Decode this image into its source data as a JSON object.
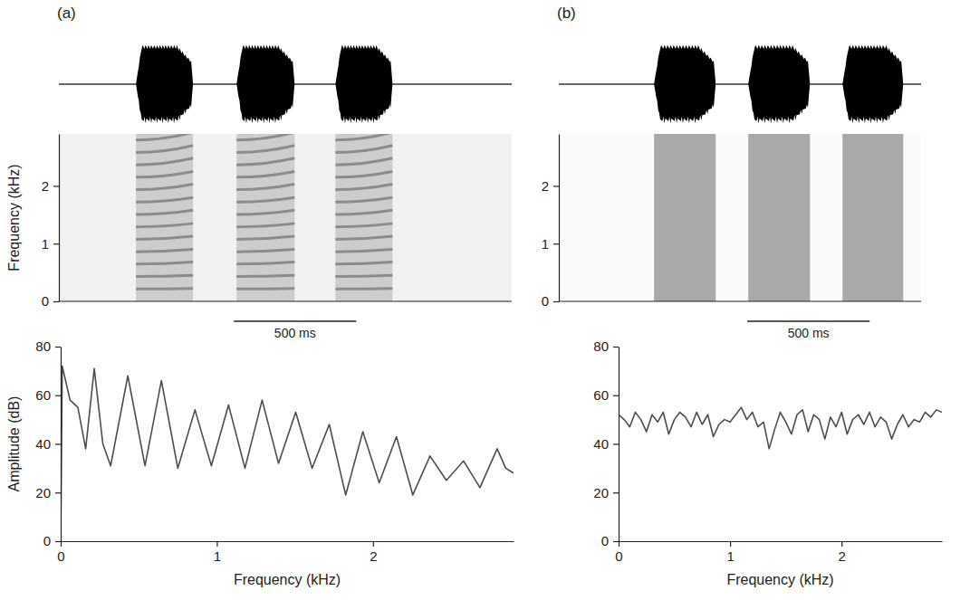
{
  "chart_data": [
    {
      "type": "waveform",
      "title": "(a)",
      "xlim": [
        0,
        1850
      ],
      "bursts": [
        [
          315,
          548
        ],
        [
          726,
          963
        ],
        [
          1130,
          1363
        ]
      ],
      "tick_labels": false
    },
    {
      "type": "spectrogram",
      "y_label": "Frequency (kHz)",
      "xlim": [
        0,
        1850
      ],
      "ylim": [
        0,
        2.9
      ],
      "yticks": [
        0,
        1,
        2
      ],
      "tick_labels": "y",
      "bursts": [
        [
          315,
          548
        ],
        [
          726,
          963
        ],
        [
          1130,
          1363
        ]
      ],
      "harmonics_start": [
        0.215,
        0.43,
        0.645,
        0.86,
        1.075,
        1.29,
        1.505,
        1.72,
        1.935,
        2.15,
        2.365,
        2.58,
        2.795
      ],
      "harmonics_end": [
        0.225,
        0.45,
        0.68,
        0.9,
        1.13,
        1.35,
        1.58,
        1.8,
        2.03,
        2.25,
        2.48,
        2.7,
        2.93
      ],
      "scale_bar": {
        "start": 715,
        "value": 500,
        "label": "500 ms"
      }
    },
    {
      "type": "line",
      "x_label": "Frequency (kHz)",
      "y_label": "Amplitude (dB)",
      "xlim": [
        0,
        2.9
      ],
      "xticks": [
        0,
        1,
        2
      ],
      "ylim": [
        0,
        80
      ],
      "yticks": [
        0,
        20,
        40,
        60,
        80
      ],
      "color": "#4d4d4d",
      "x": [
        0,
        0.01,
        0.06,
        0.11,
        0.16,
        0.215,
        0.27,
        0.32,
        0.43,
        0.54,
        0.645,
        0.75,
        0.86,
        0.965,
        1.075,
        1.18,
        1.29,
        1.395,
        1.505,
        1.61,
        1.72,
        1.825,
        1.935,
        2.04,
        2.15,
        2.255,
        2.365,
        2.47,
        2.58,
        2.685,
        2.795,
        2.85,
        2.9
      ],
      "values": [
        2,
        72,
        58,
        55,
        38,
        71,
        40,
        31,
        68,
        31,
        66,
        30,
        54,
        31,
        56,
        30,
        58,
        32,
        53,
        30,
        48,
        19,
        45,
        24,
        43,
        19,
        35,
        25,
        33,
        22,
        38,
        30,
        28
      ]
    },
    {
      "type": "waveform",
      "title": "(b)",
      "xlim": [
        0,
        1480
      ],
      "bursts": [
        [
          389,
          641
        ],
        [
          774,
          1026
        ],
        [
          1159,
          1407
        ]
      ],
      "tick_labels": false
    },
    {
      "type": "spectrogram",
      "xlim": [
        0,
        1480
      ],
      "ylim": [
        0,
        2.9
      ],
      "yticks": [
        0,
        1,
        2
      ],
      "tick_labels": "y",
      "bursts": [
        [
          389,
          641
        ],
        [
          774,
          1026
        ],
        [
          1159,
          1407
        ]
      ],
      "scale_bar": {
        "start": 770,
        "value": 500,
        "label": "500 ms"
      }
    },
    {
      "type": "line",
      "x_label": "Frequency (kHz)",
      "xlim": [
        0,
        2.9
      ],
      "xticks": [
        0,
        1,
        2
      ],
      "ylim": [
        0,
        80
      ],
      "yticks": [
        0,
        20,
        40,
        60,
        80
      ],
      "color": "#4d4d4d",
      "x": [
        0,
        0.05,
        0.1,
        0.15,
        0.2,
        0.25,
        0.3,
        0.35,
        0.4,
        0.45,
        0.5,
        0.55,
        0.6,
        0.65,
        0.7,
        0.75,
        0.8,
        0.85,
        0.9,
        0.95,
        1.0,
        1.05,
        1.1,
        1.15,
        1.2,
        1.25,
        1.3,
        1.35,
        1.4,
        1.45,
        1.5,
        1.55,
        1.6,
        1.65,
        1.7,
        1.75,
        1.8,
        1.85,
        1.9,
        1.95,
        2.0,
        2.05,
        2.1,
        2.15,
        2.2,
        2.25,
        2.3,
        2.35,
        2.4,
        2.45,
        2.5,
        2.55,
        2.6,
        2.65,
        2.7,
        2.75,
        2.8,
        2.85,
        2.9
      ],
      "values": [
        52,
        50,
        47,
        53,
        50,
        45,
        52,
        49,
        53,
        44,
        50,
        53,
        51,
        47,
        53,
        48,
        52,
        43,
        48,
        50,
        49,
        52,
        55,
        50,
        53,
        47,
        49,
        38,
        46,
        53,
        49,
        44,
        52,
        54,
        45,
        52,
        50,
        42,
        51,
        47,
        53,
        44,
        50,
        52,
        48,
        53,
        47,
        51,
        49,
        42,
        48,
        52,
        47,
        50,
        49,
        53,
        51,
        54,
        53
      ]
    }
  ]
}
